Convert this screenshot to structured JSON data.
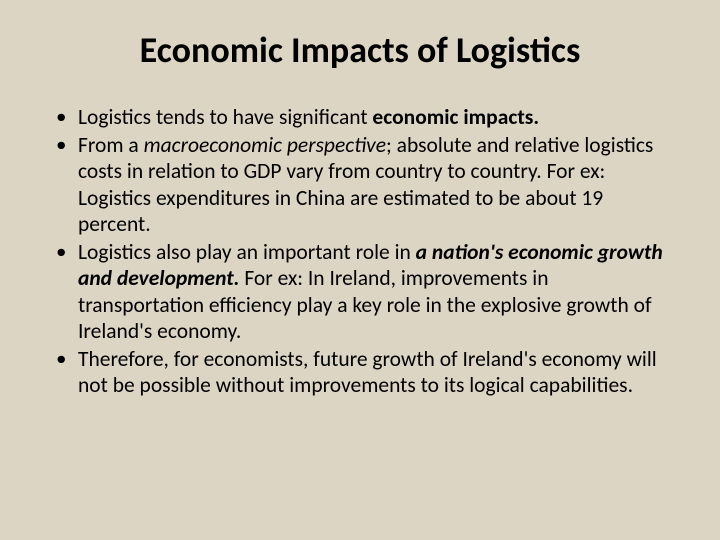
{
  "background_color": "#dcd5c4",
  "text_color": "#000000",
  "title": {
    "text": "Economic Impacts of Logistics",
    "fontsize": 36,
    "fontweight": "bold",
    "align": "center"
  },
  "bullets": [
    {
      "segments": [
        {
          "text": "Logistics tends to have significant ",
          "style": "normal"
        },
        {
          "text": "economic impacts.",
          "style": "bold"
        }
      ]
    },
    {
      "segments": [
        {
          "text": "From a ",
          "style": "normal"
        },
        {
          "text": "macroeconomic perspective",
          "style": "italic"
        },
        {
          "text": "; absolute and relative logistics costs in relation to GDP vary from country to country. For ex: Logistics expenditures in China are estimated to be about 19 percent.",
          "style": "normal"
        }
      ]
    },
    {
      "segments": [
        {
          "text": "Logistics also play an important role in ",
          "style": "normal"
        },
        {
          "text": "a nation's economic growth and development.",
          "style": "bold-italic"
        },
        {
          "text": " For ex: In Ireland, improvements in transportation efficiency play a key role in the explosive growth of Ireland's economy.",
          "style": "normal"
        }
      ]
    },
    {
      "segments": [
        {
          "text": "Therefore, for economists, future growth of Ireland's economy will not be possible without improvements to its logical capabilities.",
          "style": "normal"
        }
      ]
    }
  ],
  "bullet_fontsize": 21.5,
  "bullet_lineheight": 1.22
}
